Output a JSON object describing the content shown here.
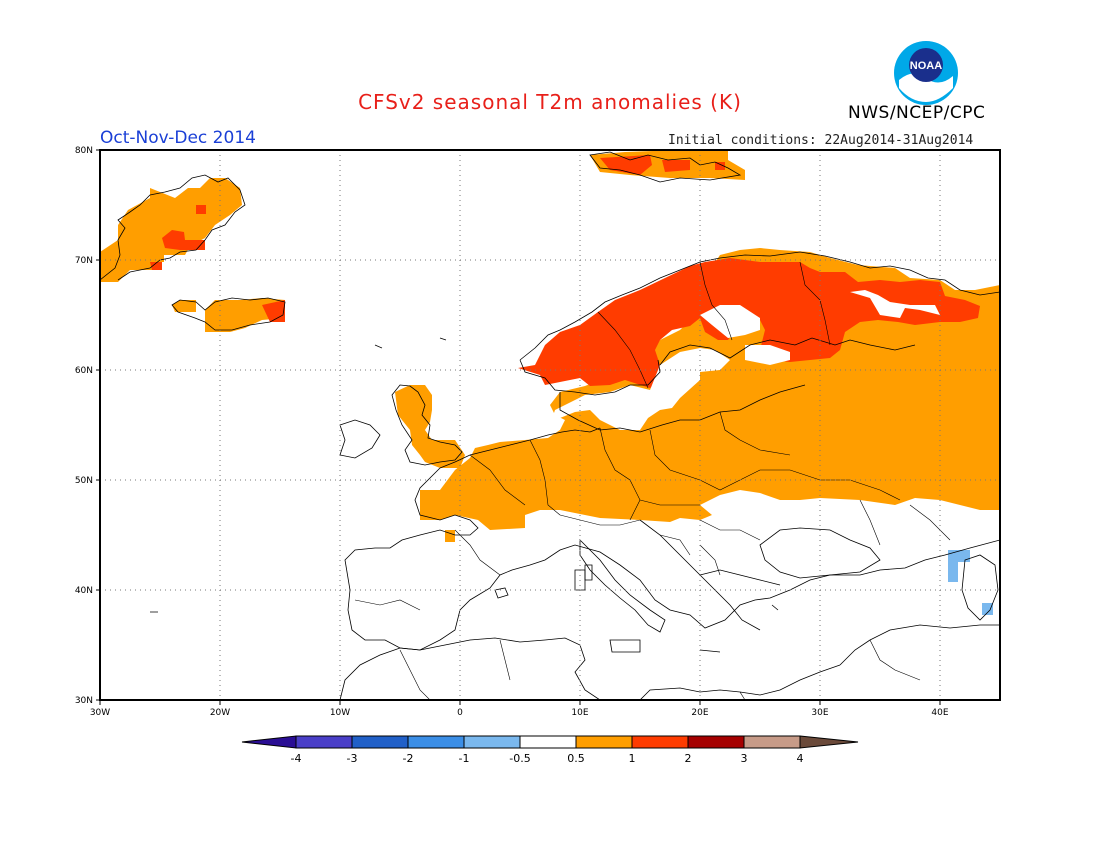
{
  "header": {
    "title": "CFSv2 seasonal T2m anomalies (K)",
    "agency": "NWS/NCEP/CPC",
    "period": "Oct-Nov-Dec 2014",
    "initial_conditions": "Initial conditions: 22Aug2014-31Aug2014",
    "logo_text": "NOAA"
  },
  "map": {
    "lat_ticks": [
      "80N",
      "70N",
      "60N",
      "50N",
      "40N",
      "30N"
    ],
    "lon_ticks": [
      "30W",
      "20W",
      "10W",
      "0",
      "10E",
      "20E",
      "30E",
      "40E"
    ],
    "gridlines": true
  },
  "colorbar": {
    "tick_labels": [
      "-4",
      "-3",
      "-2",
      "-1",
      "-0.5",
      "0.5",
      "1",
      "2",
      "3",
      "4"
    ],
    "colors": [
      "#2a0e94",
      "#4a3fc8",
      "#2160c8",
      "#3b8ee6",
      "#7ab8ee",
      "#ffffff",
      "#ff9e00",
      "#ff3c00",
      "#a50000",
      "#c79b88",
      "#6b4a3a"
    ]
  },
  "anomaly_colors": {
    "warm_05_1": "#ff9e00",
    "warm_1_2": "#ff3c00",
    "cool_05_1": "#7ab8ee"
  }
}
